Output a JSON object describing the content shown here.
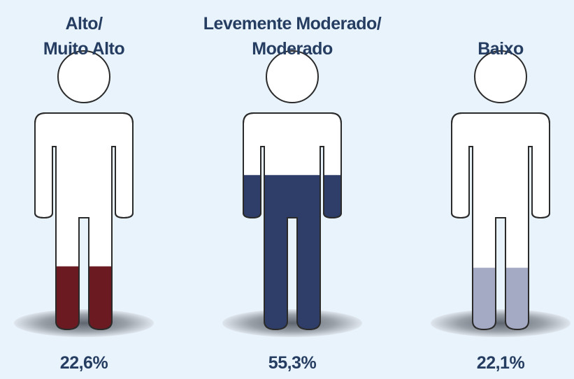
{
  "chart_data": {
    "type": "pictogram",
    "categories": [
      "Alto/\nMuito Alto",
      "Levemente Moderado/\nModerado",
      "Baixo"
    ],
    "values": [
      22.6,
      55.3,
      22.1
    ],
    "value_labels": [
      "22,6%",
      "55,3%",
      "22,1%"
    ],
    "colors": [
      "#6a1a20",
      "#2e3e68",
      "#a4aac4"
    ],
    "ylim": [
      0,
      100
    ]
  }
}
